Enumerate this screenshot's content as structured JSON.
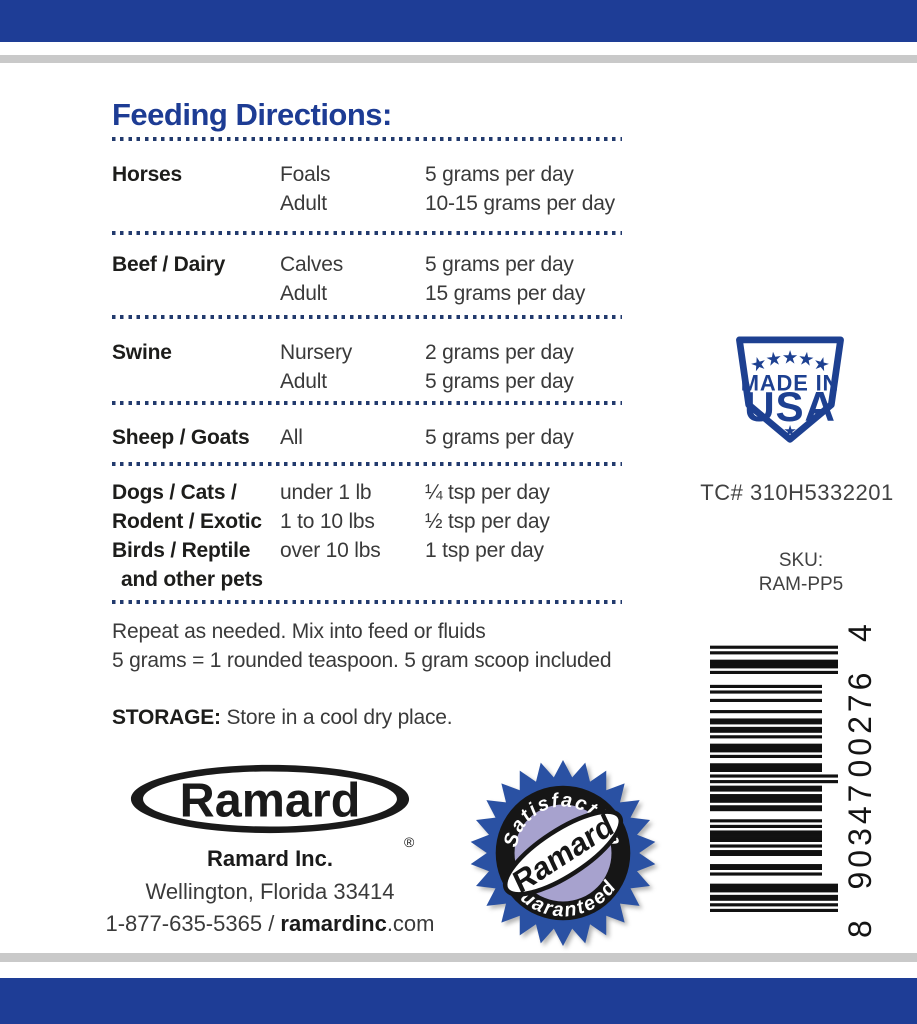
{
  "colors": {
    "blue_bar": "#1e3d96",
    "heading_blue": "#1d3c94",
    "divider_dot": "#223a6d",
    "gray_rule": "#c9c9c9",
    "text_dark": "#1d1d1b",
    "text_body": "#3a3a3a",
    "badge_blue": "#1d4091",
    "seal_blue": "#2a51a3",
    "seal_lavender": "#a7a2ce",
    "seal_ink": "#161616"
  },
  "table": {
    "heading": "Feeding Directions:",
    "rows": [
      {
        "species": "Horses",
        "entries": [
          {
            "stage": "Foals",
            "amount": "5 grams per day"
          },
          {
            "stage": "Adult",
            "amount": "10-15 grams per day"
          }
        ]
      },
      {
        "species": "Beef / Dairy",
        "entries": [
          {
            "stage": "Calves",
            "amount": "5 grams per day"
          },
          {
            "stage": "Adult",
            "amount": "15 grams per day"
          }
        ]
      },
      {
        "species": "Swine",
        "entries": [
          {
            "stage": "Nursery",
            "amount": "2 grams per day"
          },
          {
            "stage": "Adult",
            "amount": "5 grams per day"
          }
        ]
      },
      {
        "species": "Sheep / Goats",
        "entries": [
          {
            "stage": "All",
            "amount": "5 grams per day"
          }
        ]
      },
      {
        "species_lines": [
          "Dogs / Cats /",
          "Rodent / Exotic",
          "Birds / Reptile",
          "and other pets"
        ],
        "entries": [
          {
            "stage": "under 1 lb",
            "amount": "¼ tsp per day"
          },
          {
            "stage": "1 to 10 lbs",
            "amount": "½ tsp per day"
          },
          {
            "stage": "over 10 lbs",
            "amount": "1 tsp per day"
          }
        ]
      }
    ]
  },
  "notes": {
    "line1": "Repeat as needed. Mix into feed or fluids",
    "line2": "5 grams = 1 rounded teaspoon. 5 gram scoop included"
  },
  "storage": {
    "label": "STORAGE:",
    "text": " Store in a cool dry place."
  },
  "company": {
    "logo_text": "Ramard",
    "registered": "®",
    "name": "Ramard Inc.",
    "address": "Wellington, Florida 33414",
    "phone": "1-877-635-5365",
    "separator": " / ",
    "website_bold": "ramardinc",
    "website_rest": ".com"
  },
  "usa_badge": {
    "line1": "MADE IN",
    "line2": "USA",
    "star": "★"
  },
  "tc_number": "TC# 310H5332201",
  "sku": {
    "label": "SKU:",
    "value": "RAM-PP5"
  },
  "barcode": {
    "value": "890347002764",
    "first": "8",
    "left_group": "90347",
    "right_group": "00276",
    "check": "4"
  },
  "seal": {
    "top": "Satisfaction",
    "center": "Ramard",
    "bottom": "Guaranteed"
  }
}
